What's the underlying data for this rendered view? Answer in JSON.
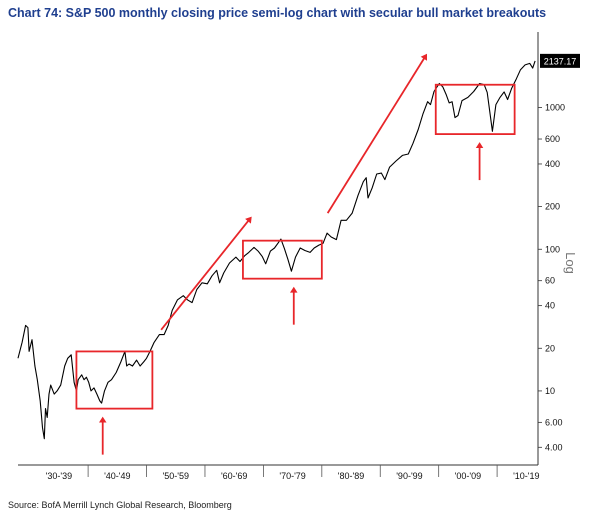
{
  "title": "Chart 74: S&P 500 monthly closing price semi-log chart with secular bull market breakouts",
  "source": "Source: BofA Merrill Lynch Global Research, Bloomberg",
  "colors": {
    "title": "#1f3f8f",
    "series": "#000000",
    "annotation": "#e8262a",
    "last_label_bg": "#000000"
  },
  "chart_data": {
    "type": "line",
    "title": "Chart 74: S&P 500 monthly closing price semi-log chart with secular bull market breakouts",
    "xlabel": "",
    "ylabel": "Log",
    "y_scale": "log",
    "ylim": [
      3,
      3000
    ],
    "xlim": [
      1928,
      2017
    ],
    "x_tick_labels": [
      "'30-'39",
      "'40-'49",
      "'50-'59",
      "'60-'69",
      "'70-'79",
      "'80-'89",
      "'90-'99",
      "'00-'09",
      "'10-'19"
    ],
    "x_tick_centers": [
      1935,
      1945,
      1955,
      1965,
      1975,
      1985,
      1995,
      2005,
      2015
    ],
    "x_tick_dividers": [
      1940,
      1950,
      1960,
      1970,
      1980,
      1990,
      2000,
      2010
    ],
    "y_ticks": [
      4,
      6,
      10,
      20,
      40,
      60,
      100,
      200,
      400,
      600,
      1000
    ],
    "y_tick_labels": [
      "4.00",
      "6.00",
      "10",
      "20",
      "40",
      "60",
      "100",
      "200",
      "400",
      "600",
      "1000"
    ],
    "last_value_label": "2137.17",
    "last_value": 2137.17,
    "grid": false,
    "series": [
      {
        "x": [
          1928.0,
          1928.7,
          1929.3,
          1929.7,
          1929.9,
          1930.4,
          1930.9,
          1931.3,
          1931.8,
          1932.2,
          1932.5,
          1932.7,
          1933.0,
          1933.3,
          1933.6,
          1934.2,
          1934.7,
          1935.3,
          1936.0,
          1936.5,
          1937.1,
          1937.6,
          1938.0,
          1938.3,
          1938.9,
          1939.3,
          1939.7,
          1940.1,
          1940.5,
          1941.0,
          1941.5,
          1942.0,
          1942.3,
          1942.8,
          1943.4,
          1944.0,
          1944.8,
          1945.6,
          1946.3,
          1946.6,
          1947.0,
          1947.6,
          1948.3,
          1948.9,
          1949.5,
          1950.0,
          1950.6,
          1951.3,
          1952.2,
          1953.0,
          1953.7,
          1954.4,
          1955.3,
          1956.3,
          1957.0,
          1957.8,
          1958.6,
          1959.5,
          1960.4,
          1961.2,
          1962.0,
          1962.5,
          1963.2,
          1964.2,
          1965.3,
          1966.0,
          1966.8,
          1967.5,
          1968.4,
          1969.1,
          1969.8,
          1970.4,
          1971.2,
          1971.9,
          1972.6,
          1973.0,
          1973.6,
          1974.2,
          1974.8,
          1975.5,
          1976.3,
          1977.1,
          1978.0,
          1978.7,
          1979.5,
          1980.2,
          1980.9,
          1981.6,
          1982.5,
          1983.3,
          1984.2,
          1985.2,
          1986.2,
          1987.1,
          1987.6,
          1987.9,
          1988.6,
          1989.4,
          1990.2,
          1990.8,
          1991.6,
          1992.7,
          1993.8,
          1994.8,
          1995.6,
          1996.5,
          1997.3,
          1998.1,
          1998.6,
          1999.2,
          2000.1,
          2000.7,
          2001.3,
          2001.8,
          2002.3,
          2002.8,
          2003.3,
          2004.0,
          2005.0,
          2006.0,
          2007.0,
          2007.8,
          2008.3,
          2008.8,
          2009.2,
          2009.8,
          2010.5,
          2011.2,
          2011.8,
          2012.5,
          2013.3,
          2014.0,
          2014.8,
          2015.6,
          2016.1,
          2016.5
        ],
        "y": [
          17,
          22,
          29,
          28,
          19,
          23,
          15,
          12,
          8.5,
          5.5,
          4.6,
          7.5,
          6.5,
          9.5,
          11,
          9.5,
          10,
          11,
          15,
          17,
          18,
          11.5,
          10,
          12,
          13,
          12,
          12.5,
          11.5,
          10,
          10.5,
          9.5,
          8.5,
          8.2,
          10,
          11.5,
          12,
          13.5,
          16,
          19,
          15,
          15.5,
          15,
          16.5,
          15,
          16,
          17,
          19,
          22,
          25,
          25,
          29,
          37,
          44,
          47,
          44,
          42,
          52,
          58,
          57,
          65,
          71,
          58,
          68,
          80,
          88,
          82,
          90,
          95,
          103,
          97,
          89,
          79,
          97,
          102,
          112,
          118,
          101,
          85,
          70,
          88,
          102,
          98,
          95,
          102,
          107,
          110,
          130,
          122,
          117,
          160,
          160,
          180,
          240,
          300,
          320,
          230,
          270,
          340,
          345,
          310,
          380,
          420,
          460,
          470,
          560,
          700,
          900,
          1100,
          1050,
          1300,
          1480,
          1400,
          1230,
          1080,
          1100,
          850,
          880,
          1120,
          1180,
          1300,
          1480,
          1450,
          1280,
          900,
          680,
          1050,
          1180,
          1290,
          1140,
          1370,
          1600,
          1850,
          2000,
          2050,
          1900,
          2137.17
        ]
      }
    ],
    "annotations": [
      {
        "type": "box",
        "x": [
          1938.0,
          1951.0
        ],
        "y": [
          7.5,
          19
        ]
      },
      {
        "type": "box",
        "x": [
          1966.5,
          1980.0
        ],
        "y": [
          62,
          115
        ]
      },
      {
        "type": "box",
        "x": [
          1999.5,
          2013.0
        ],
        "y": [
          650,
          1450
        ]
      },
      {
        "type": "arrow",
        "direction": "up",
        "at": 1942.5
      },
      {
        "type": "arrow",
        "direction": "up",
        "at": 1975.2
      },
      {
        "type": "arrow",
        "direction": "up",
        "at": 2007.0
      },
      {
        "type": "arrow",
        "direction": "up-right",
        "from": [
          1952.5,
          27
        ],
        "to": [
          1968.0,
          170
        ]
      },
      {
        "type": "arrow",
        "direction": "up-right",
        "from": [
          1981.0,
          180
        ],
        "to": [
          1998.0,
          2400
        ]
      }
    ]
  }
}
